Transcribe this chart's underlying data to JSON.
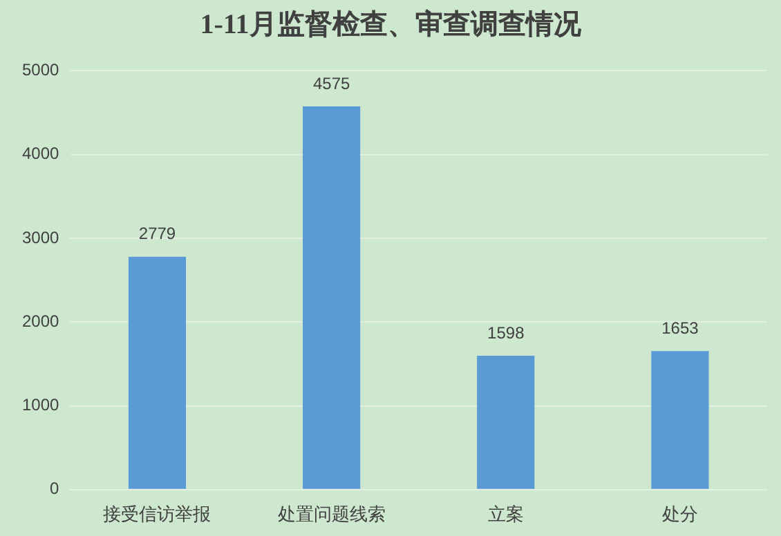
{
  "chart_data": {
    "type": "bar",
    "title": "1-11月监督检查、审查调查情况",
    "categories": [
      "接受信访举报",
      "处置问题线索",
      "立案",
      "处分"
    ],
    "values": [
      2779,
      4575,
      1598,
      1653
    ],
    "color": "#5b9bd5",
    "ylim": [
      0,
      5000
    ],
    "yticks": [
      0,
      1000,
      2000,
      3000,
      4000,
      5000
    ],
    "grid": "y",
    "data_labels": true,
    "legend": false
  }
}
